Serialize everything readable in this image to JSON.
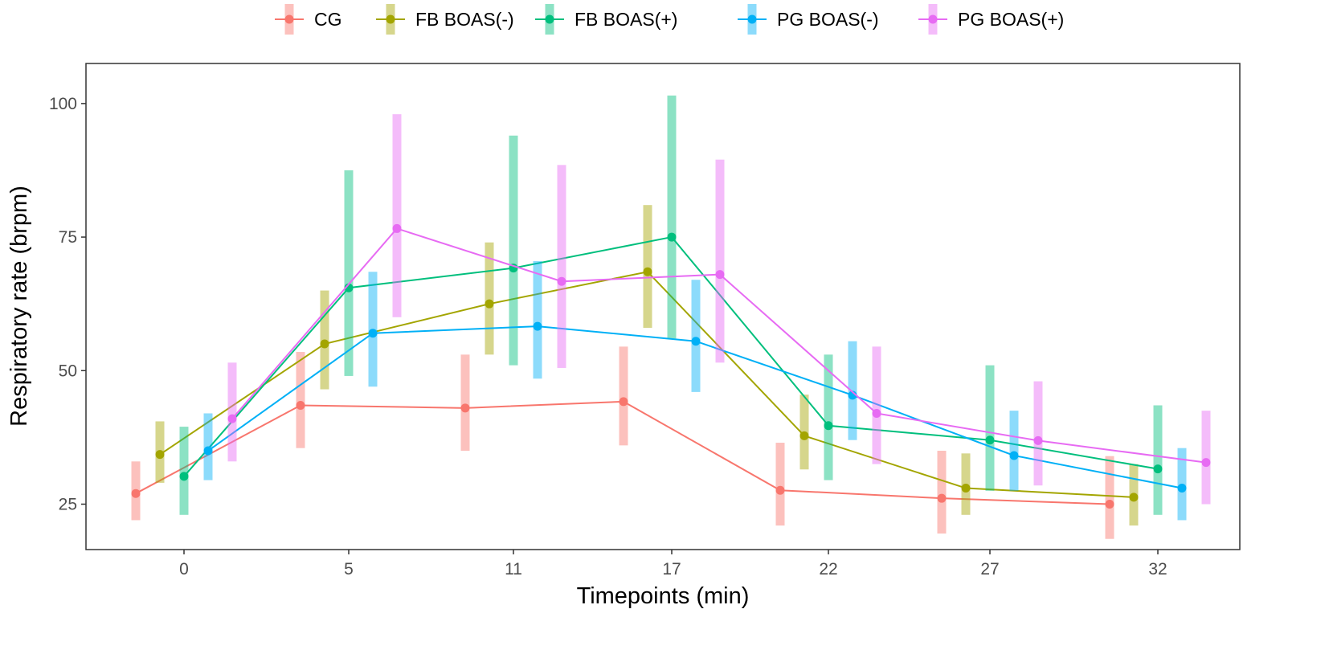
{
  "chart_data": {
    "type": "line",
    "title": "",
    "xlabel": "Timepoints (min)",
    "ylabel": "Respiratory rate (brpm)",
    "categories": [
      "0",
      "5",
      "11",
      "17",
      "22",
      "27",
      "32"
    ],
    "yticks": [
      25,
      50,
      75,
      100
    ],
    "ylim": [
      16.5,
      107.5
    ],
    "legend_position": "top",
    "series": [
      {
        "name": "CG",
        "color": "#F8766D",
        "mean": [
          27,
          43.5,
          43,
          44.2,
          27.6,
          26.1,
          25
        ],
        "lower": [
          22,
          35.5,
          35,
          36,
          21,
          19.5,
          18.5
        ],
        "upper": [
          33,
          53.5,
          53,
          54.5,
          36.5,
          35,
          34
        ]
      },
      {
        "name": "FB BOAS(-)",
        "color": "#A3A500",
        "mean": [
          34.3,
          55,
          62.5,
          68.5,
          37.8,
          28,
          26.3
        ],
        "lower": [
          29,
          46.5,
          53,
          58,
          31.5,
          23,
          21
        ],
        "upper": [
          40.5,
          65,
          74,
          81,
          45.5,
          34.5,
          32.5
        ]
      },
      {
        "name": "FB BOAS(+)",
        "color": "#00BF7D",
        "mean": [
          30.2,
          65.5,
          69.2,
          75,
          39.7,
          37,
          31.6
        ],
        "lower": [
          23,
          49,
          51,
          56,
          29.5,
          27.5,
          23
        ],
        "upper": [
          39.5,
          87.5,
          94,
          101.5,
          53,
          51,
          43.5
        ]
      },
      {
        "name": "PG BOAS(-)",
        "color": "#00B0F6",
        "mean": [
          35,
          57,
          58.3,
          55.5,
          45.4,
          34.1,
          28
        ],
        "lower": [
          29.5,
          47,
          48.5,
          46,
          37,
          27.5,
          22
        ],
        "upper": [
          42,
          68.5,
          70.5,
          67,
          55.5,
          42.5,
          35.5
        ]
      },
      {
        "name": "PG BOAS(+)",
        "color": "#E76BF3",
        "mean": [
          41,
          76.6,
          66.7,
          68,
          42,
          36.9,
          32.8
        ],
        "lower": [
          33,
          60,
          50.5,
          51.5,
          32.5,
          28.5,
          25
        ],
        "upper": [
          51.5,
          98,
          88.5,
          89.5,
          54.5,
          48,
          42.5
        ]
      }
    ]
  }
}
